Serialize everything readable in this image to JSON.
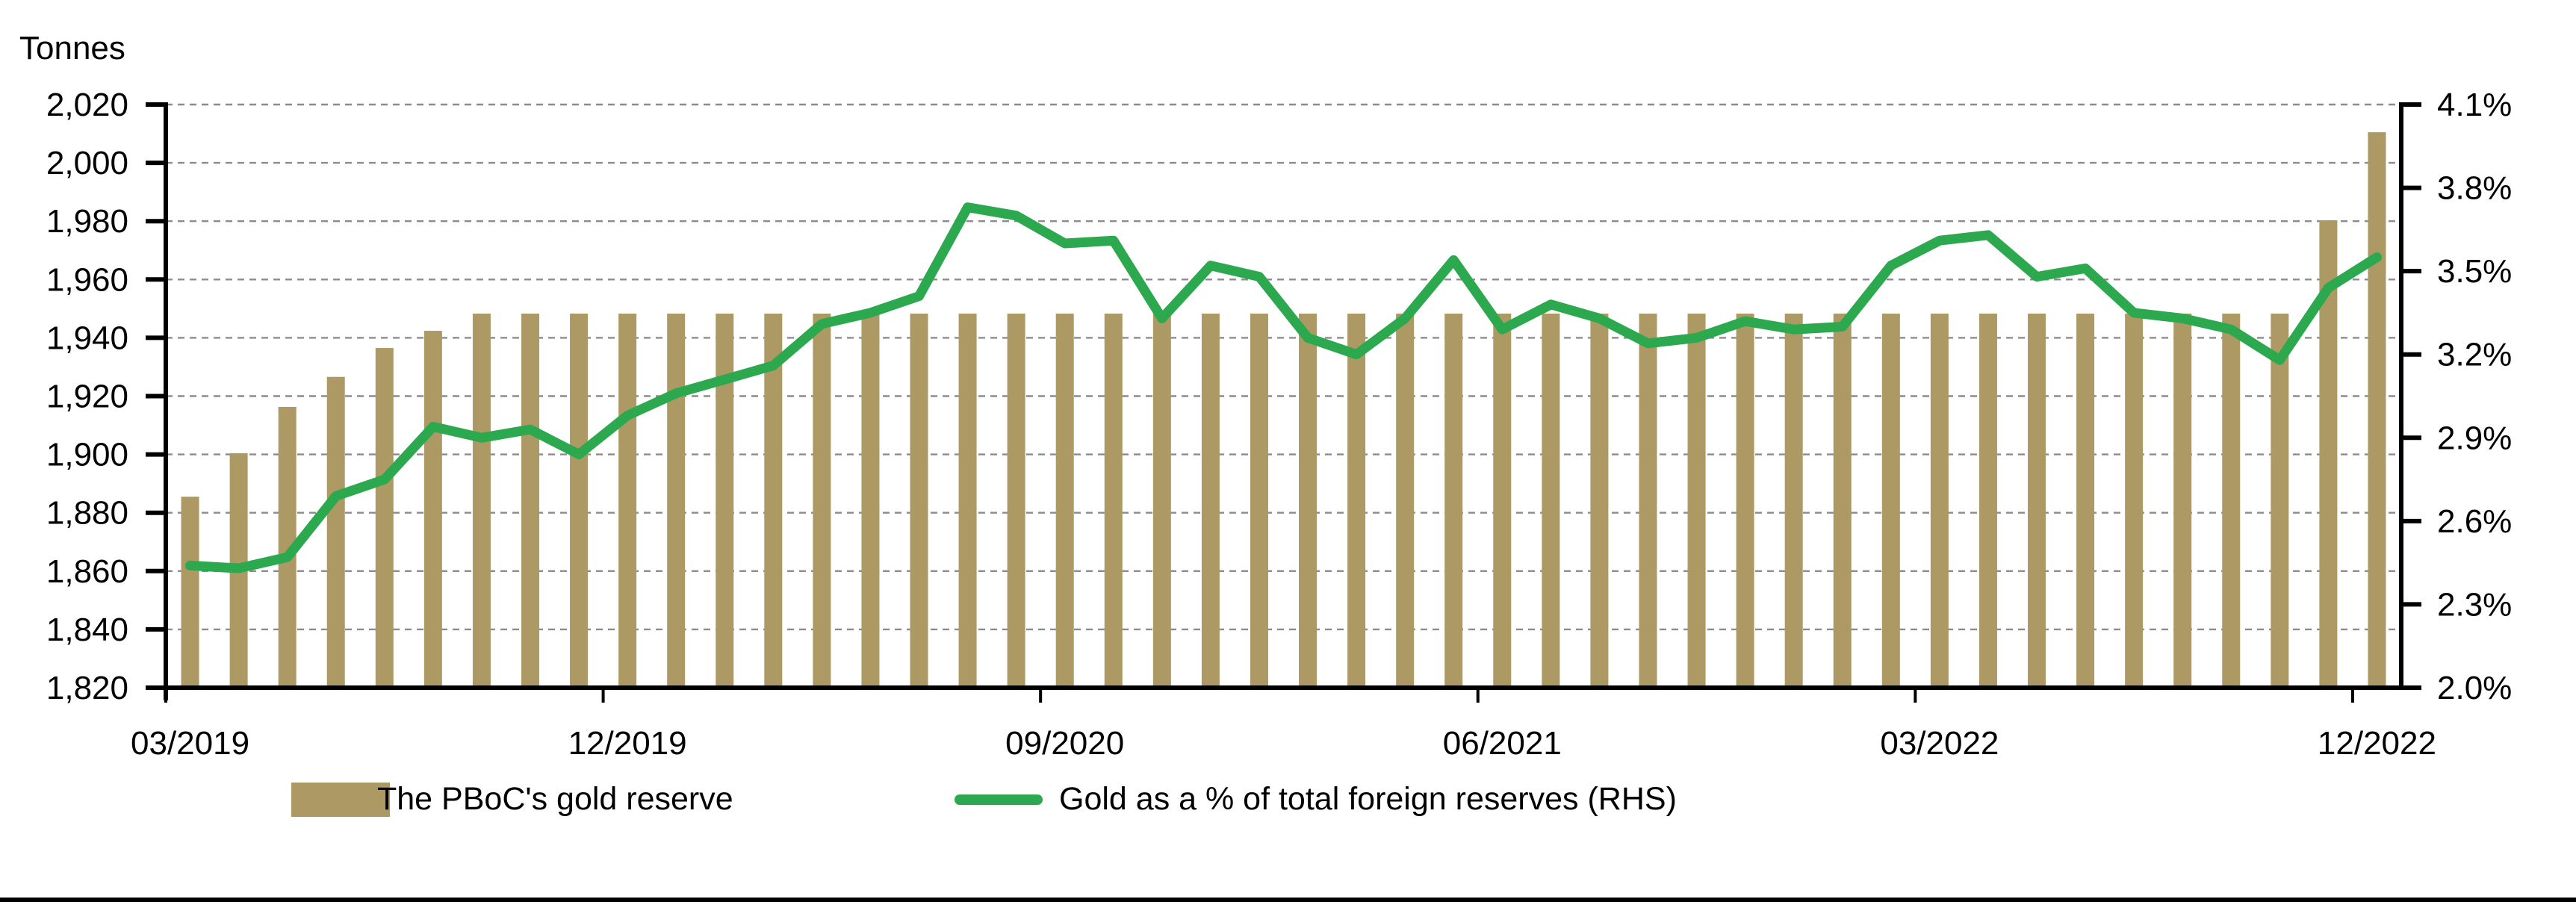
{
  "chart_data": {
    "type": "bar+line",
    "title": "",
    "categories": [
      "03/2019",
      "04/2019",
      "05/2019",
      "06/2019",
      "07/2019",
      "08/2019",
      "09/2019",
      "10/2019",
      "11/2019",
      "12/2019",
      "01/2020",
      "02/2020",
      "03/2020",
      "04/2020",
      "05/2020",
      "06/2020",
      "07/2020",
      "08/2020",
      "09/2020",
      "10/2020",
      "11/2020",
      "12/2020",
      "01/2021",
      "02/2021",
      "03/2021",
      "04/2021",
      "05/2021",
      "06/2021",
      "07/2021",
      "08/2021",
      "09/2021",
      "10/2021",
      "11/2021",
      "12/2021",
      "01/2022",
      "02/2022",
      "03/2022",
      "04/2022",
      "05/2022",
      "06/2022",
      "07/2022",
      "08/2022",
      "09/2022",
      "10/2022",
      "11/2022",
      "12/2022"
    ],
    "series": [
      {
        "name": "The PBoC's gold reserve",
        "type": "bar",
        "axis": "left",
        "color": "#AC9964",
        "values": [
          1885.5,
          1900.4,
          1916.3,
          1926.6,
          1936.5,
          1942.4,
          1948.3,
          1948.3,
          1948.3,
          1948.3,
          1948.3,
          1948.3,
          1948.3,
          1948.3,
          1948.3,
          1948.3,
          1948.3,
          1948.3,
          1948.3,
          1948.3,
          1948.3,
          1948.3,
          1948.3,
          1948.3,
          1948.3,
          1948.3,
          1948.3,
          1948.3,
          1948.3,
          1948.3,
          1948.3,
          1948.3,
          1948.3,
          1948.3,
          1948.3,
          1948.3,
          1948.3,
          1948.3,
          1948.3,
          1948.3,
          1948.3,
          1948.3,
          1948.3,
          1948.3,
          1980.3,
          2010.5
        ]
      },
      {
        "name": "Gold as a % of total foreign reserves (RHS)",
        "type": "line",
        "axis": "right",
        "color": "#2CA84E",
        "values": [
          2.44,
          2.43,
          2.47,
          2.69,
          2.75,
          2.94,
          2.9,
          2.93,
          2.84,
          2.98,
          3.06,
          3.11,
          3.16,
          3.31,
          3.35,
          3.41,
          3.73,
          3.7,
          3.6,
          3.61,
          3.33,
          3.52,
          3.48,
          3.26,
          3.2,
          3.33,
          3.54,
          3.29,
          3.38,
          3.33,
          3.24,
          3.26,
          3.32,
          3.29,
          3.3,
          3.52,
          3.61,
          3.63,
          3.48,
          3.51,
          3.35,
          3.33,
          3.29,
          3.18,
          3.44,
          3.55
        ]
      }
    ],
    "left_axis": {
      "title": "Tonnes",
      "min": 1820,
      "max": 2020,
      "step": 20,
      "tick_labels": [
        "1,820",
        "1,840",
        "1,860",
        "1,880",
        "1,900",
        "1,920",
        "1,940",
        "1,960",
        "1,980",
        "2,000",
        "2,020"
      ]
    },
    "right_axis": {
      "min": 2.0,
      "max": 4.1,
      "step": 0.3,
      "tick_labels": [
        "2.0%",
        "2.3%",
        "2.6%",
        "2.9%",
        "3.2%",
        "3.5%",
        "3.8%",
        "4.1%"
      ]
    },
    "x_axis": {
      "tick_labels": [
        "03/2019",
        "12/2019",
        "09/2020",
        "06/2021",
        "03/2022",
        "12/2022"
      ],
      "labeled_month_indices": [
        0,
        9,
        18,
        27,
        36,
        45
      ]
    },
    "grid": "horizontal-dashed",
    "legend_position": "bottom"
  },
  "legend": {
    "bar_label": "The PBoC's gold reserve",
    "line_label": "Gold as a % of total foreign reserves (RHS)"
  },
  "colors": {
    "bar": "#AC9964",
    "line": "#2CA84E",
    "gridline": "#8C8C8C",
    "axis": "#000000",
    "footer_rule": "#000000",
    "background": "#FFFFFF"
  }
}
